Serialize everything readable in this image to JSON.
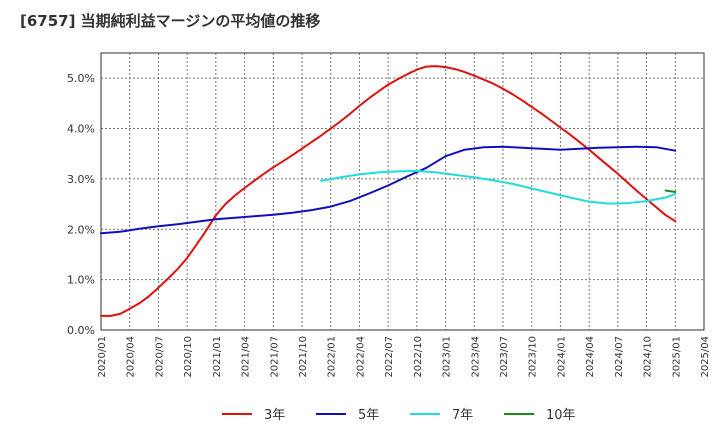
{
  "chart_data": {
    "type": "line",
    "title": "[6757]  当期純利益マージンの平均値の推移",
    "xlabel": "",
    "ylabel": "",
    "ylim": [
      0,
      5.5
    ],
    "yticks": [
      "0.0%",
      "1.0%",
      "2.0%",
      "3.0%",
      "4.0%",
      "5.0%"
    ],
    "ytick_values": [
      0,
      1,
      2,
      3,
      4,
      5
    ],
    "xticks": [
      "2020/01",
      "2020/04",
      "2020/07",
      "2020/10",
      "2021/01",
      "2021/04",
      "2021/07",
      "2021/10",
      "2022/01",
      "2022/04",
      "2022/07",
      "2022/10",
      "2023/01",
      "2023/04",
      "2023/07",
      "2023/10",
      "2024/01",
      "2024/04",
      "2024/07",
      "2024/10",
      "2025/01",
      "2025/04"
    ],
    "grid": true,
    "legend_position": "bottom",
    "series": [
      {
        "name": "3年",
        "color": "#dd1111",
        "x": [
          "2020/01",
          "2020/02",
          "2020/03",
          "2020/04",
          "2020/05",
          "2020/06",
          "2020/07",
          "2020/08",
          "2020/09",
          "2020/10",
          "2020/11",
          "2020/12",
          "2021/01",
          "2021/02",
          "2021/03",
          "2021/04",
          "2021/05",
          "2021/06",
          "2021/07",
          "2021/08",
          "2021/09",
          "2021/10",
          "2021/11",
          "2021/12",
          "2022/01",
          "2022/02",
          "2022/03",
          "2022/04",
          "2022/05",
          "2022/06",
          "2022/07",
          "2022/08",
          "2022/09",
          "2022/10",
          "2022/11",
          "2022/12",
          "2023/01",
          "2023/02",
          "2023/03",
          "2023/04",
          "2023/05",
          "2023/06",
          "2023/07",
          "2023/08",
          "2023/09",
          "2023/10",
          "2023/11",
          "2023/12",
          "2024/01",
          "2024/02",
          "2024/03",
          "2024/04",
          "2024/05",
          "2024/06",
          "2024/07",
          "2024/08",
          "2024/09",
          "2024/10",
          "2024/11",
          "2024/12",
          "2025/01"
        ],
        "values": [
          0.28,
          0.28,
          0.32,
          0.42,
          0.53,
          0.67,
          0.84,
          1.02,
          1.21,
          1.43,
          1.7,
          1.98,
          2.28,
          2.5,
          2.67,
          2.82,
          2.96,
          3.1,
          3.23,
          3.35,
          3.47,
          3.6,
          3.73,
          3.86,
          4.0,
          4.14,
          4.29,
          4.45,
          4.6,
          4.74,
          4.87,
          4.98,
          5.08,
          5.17,
          5.23,
          5.24,
          5.22,
          5.18,
          5.12,
          5.05,
          4.97,
          4.89,
          4.79,
          4.68,
          4.56,
          4.43,
          4.3,
          4.16,
          4.02,
          3.88,
          3.73,
          3.58,
          3.42,
          3.26,
          3.1,
          2.93,
          2.76,
          2.6,
          2.44,
          2.28,
          2.16
        ]
      },
      {
        "name": "5年",
        "color": "#1111bb",
        "x": [
          "2020/01",
          "2020/03",
          "2020/05",
          "2020/07",
          "2020/09",
          "2020/11",
          "2021/01",
          "2021/03",
          "2021/05",
          "2021/07",
          "2021/09",
          "2021/11",
          "2022/01",
          "2022/03",
          "2022/05",
          "2022/07",
          "2022/09",
          "2022/11",
          "2023/01",
          "2023/03",
          "2023/05",
          "2023/07",
          "2023/09",
          "2023/11",
          "2024/01",
          "2024/03",
          "2024/05",
          "2024/07",
          "2024/09",
          "2024/11",
          "2025/01"
        ],
        "values": [
          1.92,
          1.95,
          2.01,
          2.06,
          2.1,
          2.15,
          2.2,
          2.23,
          2.26,
          2.29,
          2.33,
          2.38,
          2.45,
          2.56,
          2.71,
          2.87,
          3.05,
          3.22,
          3.45,
          3.58,
          3.63,
          3.64,
          3.62,
          3.6,
          3.58,
          3.6,
          3.62,
          3.63,
          3.64,
          3.63,
          3.56
        ]
      },
      {
        "name": "7年",
        "color": "#22dddd",
        "x": [
          "2021/12",
          "2022/02",
          "2022/04",
          "2022/06",
          "2022/08",
          "2022/10",
          "2022/12",
          "2023/02",
          "2023/04",
          "2023/06",
          "2023/08",
          "2023/10",
          "2023/12",
          "2024/02",
          "2024/04",
          "2024/06",
          "2024/08",
          "2024/10",
          "2024/12",
          "2025/01"
        ],
        "values": [
          2.96,
          3.03,
          3.09,
          3.13,
          3.15,
          3.16,
          3.13,
          3.08,
          3.03,
          2.97,
          2.9,
          2.81,
          2.72,
          2.63,
          2.55,
          2.51,
          2.52,
          2.56,
          2.63,
          2.7
        ]
      },
      {
        "name": "10年",
        "color": "#228822",
        "x": [
          "2024/12",
          "2025/01"
        ],
        "values": [
          2.77,
          2.74
        ]
      }
    ]
  }
}
